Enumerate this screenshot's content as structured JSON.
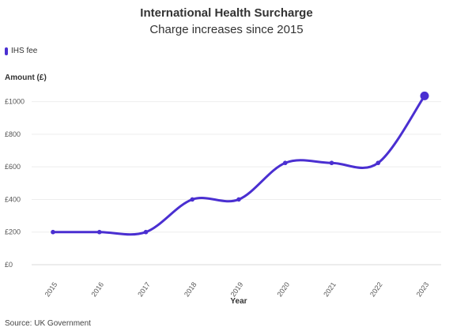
{
  "chart_data": {
    "type": "line",
    "title": "International Health Surcharge",
    "subtitle": "Charge increases since 2015",
    "xlabel": "Year",
    "ylabel": "Amount (£)",
    "categories": [
      "2015",
      "2016",
      "2017",
      "2018",
      "2019",
      "2020",
      "2021",
      "2022",
      "2023"
    ],
    "series": [
      {
        "name": "IHS fee",
        "values": [
          200,
          200,
          200,
          400,
          400,
          624,
          624,
          624,
          1035
        ],
        "color": "#4a2fd1"
      }
    ],
    "ylim": [
      0,
      1100
    ],
    "yticks": [
      0,
      200,
      400,
      600,
      800,
      1000
    ],
    "ytick_labels": [
      "£0",
      "£200",
      "£400",
      "£600",
      "£800",
      "£1000"
    ],
    "grid": true,
    "legend_position": "top-left",
    "source": "Source: UK Government"
  }
}
